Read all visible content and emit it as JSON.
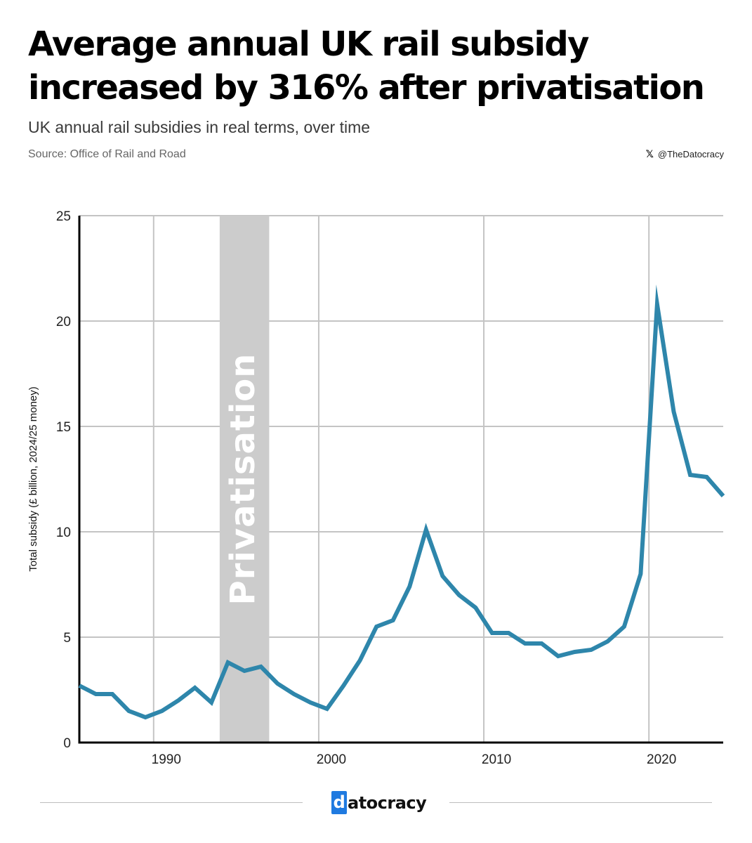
{
  "header": {
    "title": "Average annual UK rail subsidy increased by 316% after privatisation",
    "subtitle": "UK annual rail subsidies in real terms, over time",
    "source": "Source: Office of Rail and Road",
    "handle": "@TheDatocracy",
    "handle_icon": "x-logo-icon"
  },
  "footer": {
    "brand_first_letter": "d",
    "brand_rest": "atocracy",
    "brand_color": "#1f7ae0"
  },
  "chart_data": {
    "type": "line",
    "ylabel": "Total subsidy (£ billion, 2024/25 money)",
    "xlabel": "",
    "xlim": [
      1985.5,
      2024.5
    ],
    "ylim": [
      0,
      25
    ],
    "x_ticks": [
      1990,
      2000,
      2010,
      2020
    ],
    "y_ticks": [
      0,
      5,
      10,
      15,
      20,
      25
    ],
    "grid": true,
    "line_color": "#2e86ab",
    "shaded_region": {
      "label": "Privatisation",
      "x_start": 1994,
      "x_end": 1997,
      "color": "#cccccc"
    },
    "series": [
      {
        "x": [
          1985.5,
          1986.5,
          1987.5,
          1988.5,
          1989.5,
          1990.5,
          1991.5,
          1992.5,
          1993.5,
          1994.5,
          1995.5,
          1996.5,
          1997.5,
          1998.5,
          1999.5,
          2000.5,
          2001.5,
          2002.5,
          2003.5,
          2004.5,
          2005.5,
          2006.5,
          2007.5,
          2008.5,
          2009.5,
          2010.5,
          2011.5,
          2012.5,
          2013.5,
          2014.5,
          2015.5,
          2016.5,
          2017.5,
          2018.5,
          2019.5,
          2020.5,
          2021.5,
          2022.5,
          2023.5,
          2024.5
        ],
        "values": [
          2.7,
          2.3,
          2.3,
          1.5,
          1.2,
          1.5,
          2.0,
          2.6,
          1.9,
          3.8,
          3.4,
          3.6,
          2.8,
          2.3,
          1.9,
          1.6,
          2.7,
          3.9,
          5.5,
          5.8,
          7.4,
          10.1,
          7.9,
          7.0,
          6.4,
          5.2,
          5.2,
          4.7,
          4.7,
          4.1,
          4.3,
          4.4,
          4.8,
          5.5,
          8.0,
          20.8,
          15.7,
          12.7,
          12.6,
          11.7
        ]
      }
    ]
  }
}
